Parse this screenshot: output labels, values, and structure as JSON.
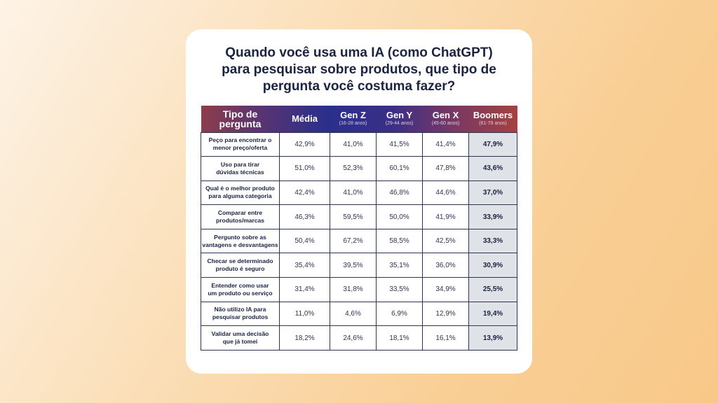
{
  "title_lines": [
    "Quando você usa uma IA (como ChatGPT)",
    "para pesquisar sobre produtos, que tipo de",
    "pergunta você costuma fazer?"
  ],
  "chart_data": {
    "type": "table",
    "title": "Quando você usa uma IA (como ChatGPT) para pesquisar sobre produtos, que tipo de pergunta você costuma fazer?",
    "columns": [
      {
        "label": "Tipo de pergunta",
        "sub": ""
      },
      {
        "label": "Média",
        "sub": ""
      },
      {
        "label": "Gen Z",
        "sub": "(16-28 anos)"
      },
      {
        "label": "Gen Y",
        "sub": "(29-44 anos)"
      },
      {
        "label": "Gen X",
        "sub": "(45-60 anos)"
      },
      {
        "label": "Boomers",
        "sub": "(61-79 anos)"
      }
    ],
    "rows": [
      {
        "q": [
          "Peço para encontrar o",
          "menor preço/oferta"
        ],
        "v": [
          "42,9%",
          "41,0%",
          "41,5%",
          "41,4%",
          "47,9%"
        ]
      },
      {
        "q": [
          "Uso para tirar",
          "dúvidas técnicas"
        ],
        "v": [
          "51,0%",
          "52,3%",
          "60,1%",
          "47,8%",
          "43,6%"
        ]
      },
      {
        "q": [
          "Qual é o melhor produto",
          "para alguma categoria"
        ],
        "v": [
          "42,4%",
          "41,0%",
          "46,8%",
          "44,6%",
          "37,0%"
        ]
      },
      {
        "q": [
          "Comparar entre",
          "produtos/marcas"
        ],
        "v": [
          "46,3%",
          "59,5%",
          "50,0%",
          "41,9%",
          "33,9%"
        ]
      },
      {
        "q": [
          "Pergunto sobre as",
          "vantagens e desvantagens"
        ],
        "v": [
          "50,4%",
          "67,2%",
          "58,5%",
          "42,5%",
          "33,3%"
        ]
      },
      {
        "q": [
          "Checar se determinado",
          "produto é seguro"
        ],
        "v": [
          "35,4%",
          "39,5%",
          "35,1%",
          "36,0%",
          "30,9%"
        ]
      },
      {
        "q": [
          "Entender como usar",
          "um produto ou serviço"
        ],
        "v": [
          "31,4%",
          "31,8%",
          "33,5%",
          "34,9%",
          "25,5%"
        ]
      },
      {
        "q": [
          "Não utilizo IA para",
          "pesquisar produtos"
        ],
        "v": [
          "11,0%",
          "4,6%",
          "6,9%",
          "12,9%",
          "19,4%"
        ]
      },
      {
        "q": [
          "Validar uma decisão",
          "que já tomei"
        ],
        "v": [
          "18,2%",
          "24,6%",
          "18,1%",
          "16,1%",
          "13,9%"
        ]
      }
    ]
  }
}
